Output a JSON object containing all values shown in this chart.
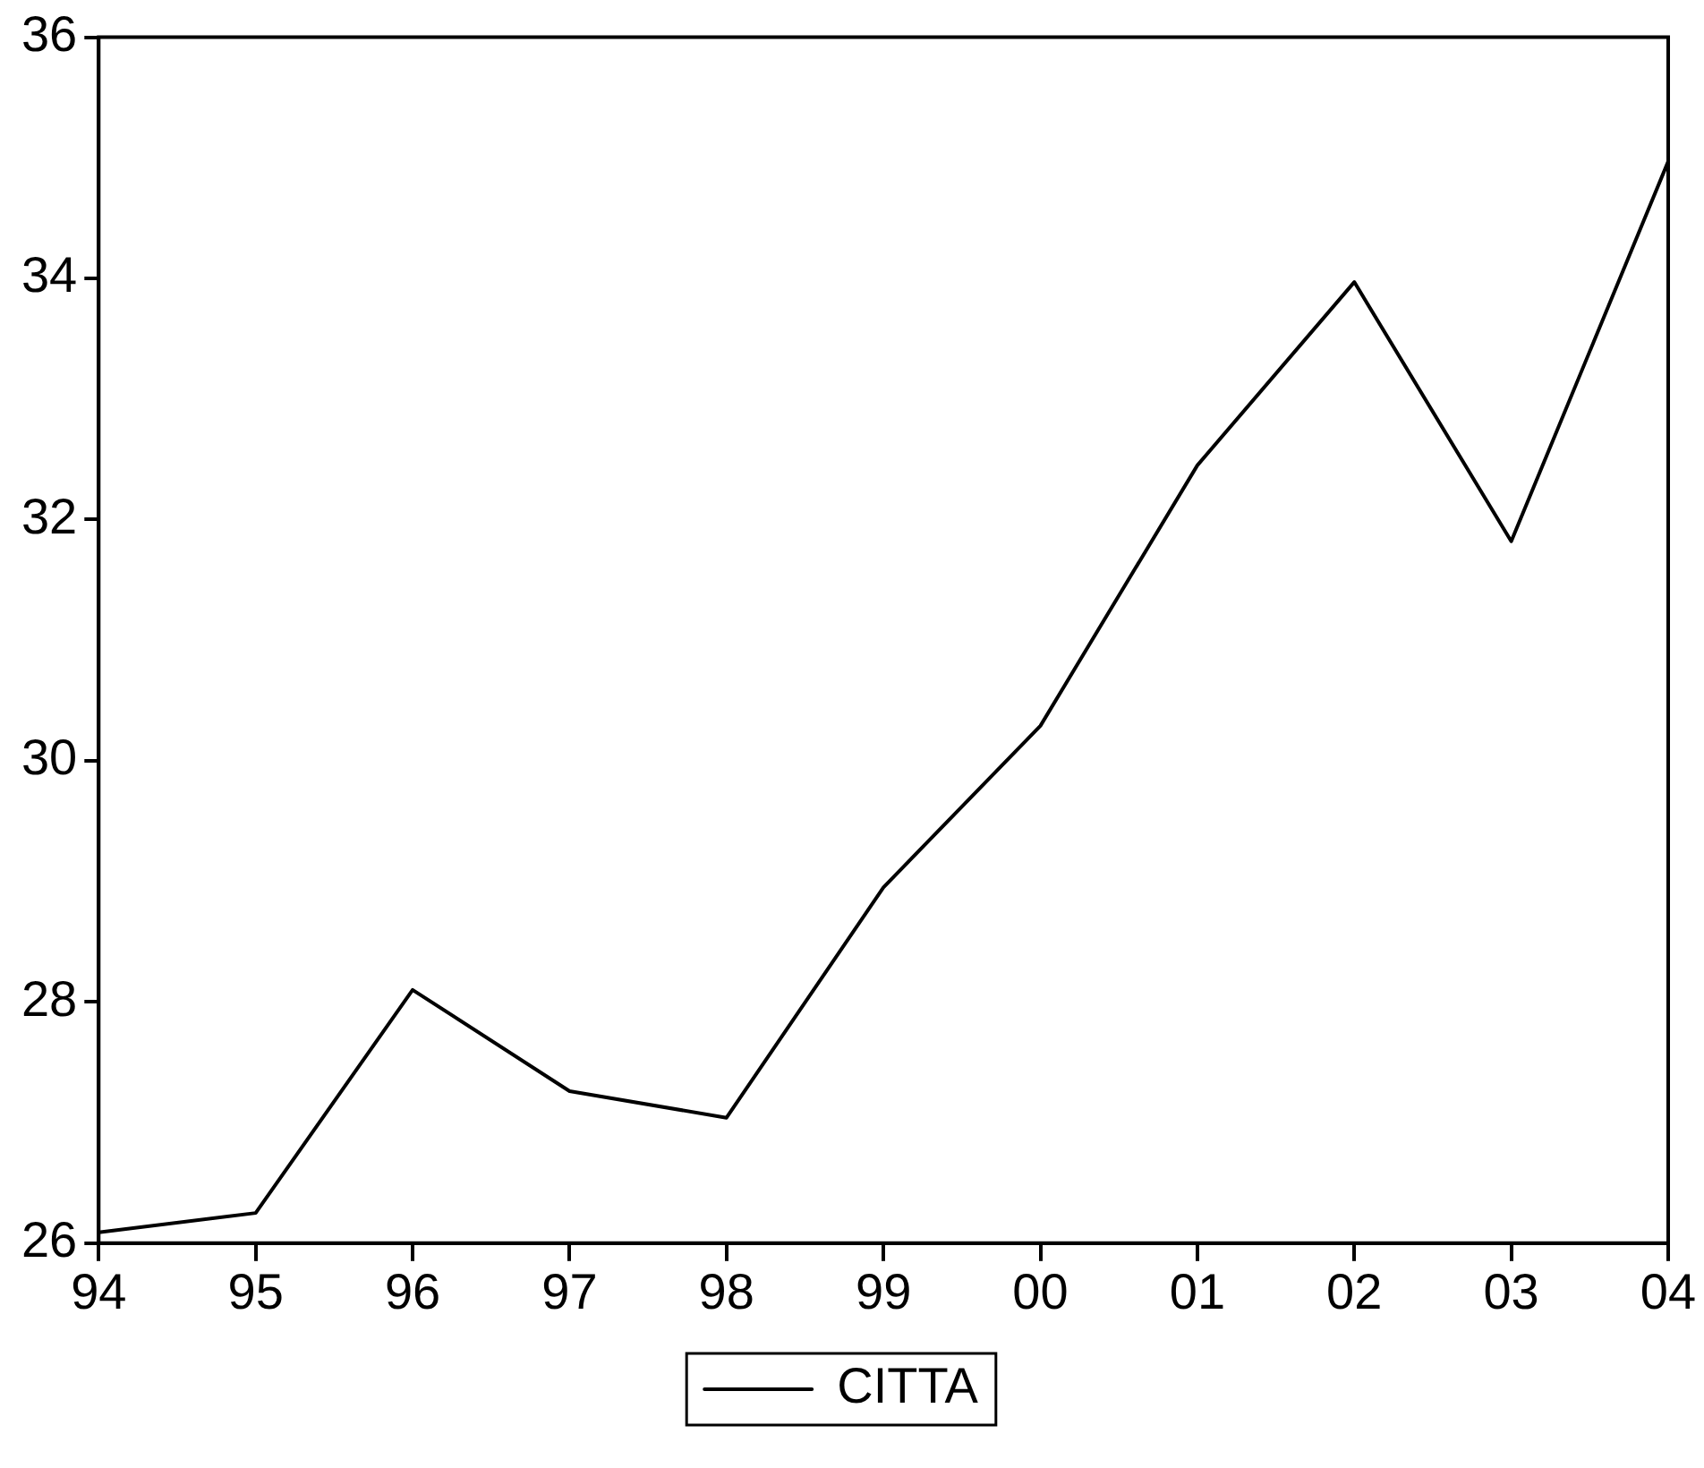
{
  "chart_data": {
    "type": "line",
    "categories": [
      "94",
      "95",
      "96",
      "97",
      "98",
      "99",
      "00",
      "01",
      "02",
      "03",
      "04"
    ],
    "series": [
      {
        "name": "CITTA",
        "color": "#000000",
        "values": [
          26.09,
          26.25,
          28.1,
          27.26,
          27.04,
          28.95,
          30.29,
          32.45,
          33.97,
          31.82,
          34.97
        ]
      }
    ],
    "ylim": [
      26,
      36
    ],
    "yticks": [
      26,
      28,
      30,
      32,
      34,
      36
    ],
    "grid": false,
    "legend": "bottom",
    "marker": "none",
    "line_style": "solid"
  }
}
